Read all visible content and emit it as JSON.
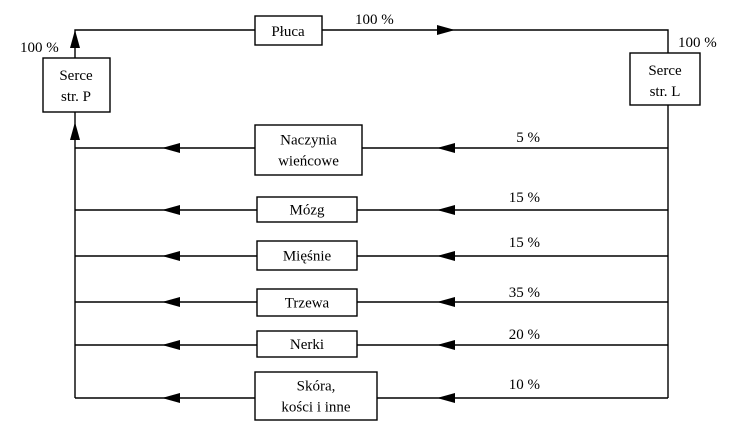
{
  "lungs": {
    "label": "Płuca",
    "flow": "100 %"
  },
  "heart_right": {
    "lines": [
      "Serce",
      "str. P"
    ],
    "flow": "100 %"
  },
  "heart_left": {
    "lines": [
      "Serce",
      "str. L"
    ],
    "flow": "100 %"
  },
  "organs": [
    {
      "lines": [
        "Naczynia",
        "wieńcowe"
      ],
      "flow": "5 %"
    },
    {
      "lines": [
        "Mózg"
      ],
      "flow": "15 %"
    },
    {
      "lines": [
        "Mięśnie"
      ],
      "flow": "15 %"
    },
    {
      "lines": [
        "Trzewa"
      ],
      "flow": "35 %"
    },
    {
      "lines": [
        "Nerki"
      ],
      "flow": "20 %"
    },
    {
      "lines": [
        "Skóra,",
        "kości i inne"
      ],
      "flow": "10 %"
    }
  ]
}
